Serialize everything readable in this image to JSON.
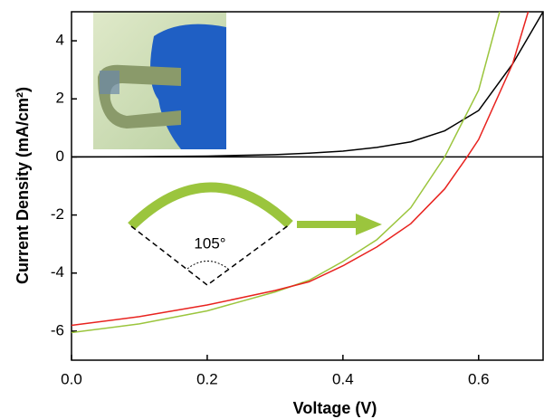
{
  "chart_data": {
    "type": "line",
    "x_label": "Voltage (V)",
    "y_label": "Current Density (mA/cm²)",
    "annotation": "105°",
    "xlim": [
      0,
      0.695
    ],
    "ylim": [
      -7,
      5
    ],
    "xticks": [
      {
        "value": 0,
        "label": "0.0"
      },
      {
        "value": 0.2,
        "label": "0.2"
      },
      {
        "value": 0.4,
        "label": "0.4"
      },
      {
        "value": 0.6,
        "label": "0.6"
      }
    ],
    "yticks": [
      -6,
      -4,
      -2,
      0,
      2,
      4
    ],
    "series": [
      {
        "color": "#000000",
        "x": [
          0,
          0.1,
          0.2,
          0.3,
          0.35,
          0.4,
          0.45,
          0.5,
          0.55,
          0.6,
          0.65,
          0.695
        ],
        "values": [
          0,
          0.01,
          0.03,
          0.08,
          0.13,
          0.2,
          0.33,
          0.52,
          0.9,
          1.6,
          3.2,
          5
        ]
      },
      {
        "color": "#9bc53d",
        "x": [
          0,
          0.1,
          0.2,
          0.3,
          0.35,
          0.4,
          0.45,
          0.5,
          0.55,
          0.6,
          0.631
        ],
        "values": [
          -6.05,
          -5.75,
          -5.3,
          -4.65,
          -4.25,
          -3.6,
          -2.85,
          -1.75,
          0,
          2.3,
          5
        ]
      },
      {
        "color": "#e8231f",
        "x": [
          0,
          0.1,
          0.2,
          0.3,
          0.35,
          0.4,
          0.45,
          0.5,
          0.55,
          0.583,
          0.6,
          0.65,
          0.673
        ],
        "values": [
          -5.8,
          -5.5,
          -5.1,
          -4.6,
          -4.3,
          -3.75,
          -3.1,
          -2.3,
          -1.1,
          0,
          0.6,
          3.2,
          5
        ]
      }
    ]
  }
}
